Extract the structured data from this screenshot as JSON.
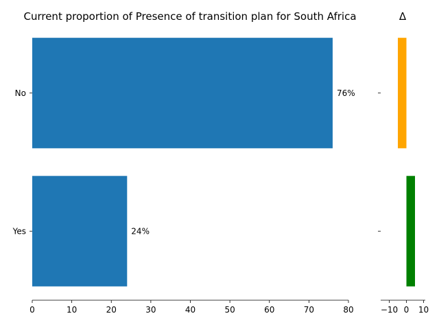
{
  "chart_data": [
    {
      "type": "bar",
      "orientation": "horizontal",
      "title": "Current proportion of Presence of transition plan for South Africa",
      "categories": [
        "No",
        "Yes"
      ],
      "values": [
        76,
        24
      ],
      "data_labels": [
        "76%",
        "24%"
      ],
      "xlim": [
        0,
        80
      ],
      "xticks": [
        0,
        10,
        20,
        30,
        40,
        50,
        60,
        70,
        80
      ],
      "xtick_labels": [
        "0",
        "10",
        "20",
        "30",
        "40",
        "50",
        "60",
        "70",
        "80"
      ],
      "color": "#1f77b4",
      "grid": false
    },
    {
      "type": "bar",
      "orientation": "horizontal",
      "title": "Δ",
      "categories": [
        "No",
        "Yes"
      ],
      "values": [
        -5,
        5
      ],
      "colors": [
        "#ffa500",
        "#008000"
      ],
      "xlim": [
        -15,
        11
      ],
      "xticks": [
        -10,
        0,
        10
      ],
      "xtick_labels": [
        "−10",
        "0",
        "10"
      ],
      "grid": false
    }
  ]
}
